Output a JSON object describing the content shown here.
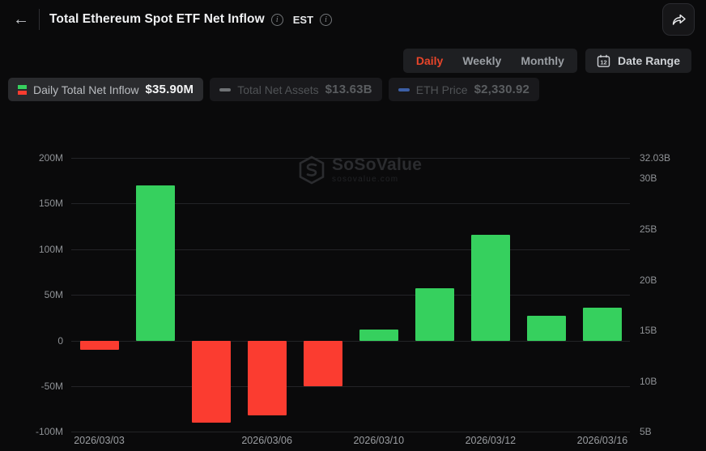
{
  "header": {
    "title": "Total Ethereum Spot ETF Net Inflow",
    "timezone": "EST"
  },
  "controls": {
    "period_tabs": [
      {
        "label": "Daily",
        "active": true
      },
      {
        "label": "Weekly",
        "active": false
      },
      {
        "label": "Monthly",
        "active": false
      }
    ],
    "date_range": {
      "label": "Date Range",
      "calendar_day": "12"
    }
  },
  "legend": [
    {
      "name": "Daily Total Net Inflow",
      "value": "$35.90M",
      "active": true,
      "swatch": "green-red-stack"
    },
    {
      "name": "Total Net Assets",
      "value": "$13.63B",
      "active": false,
      "swatch": "gray-dash"
    },
    {
      "name": "ETH Price",
      "value": "$2,330.92",
      "active": false,
      "swatch": "blue-dash"
    }
  ],
  "watermark": {
    "brand": "SoSoValue",
    "domain": "sosovalue.com"
  },
  "chart_data": {
    "type": "bar",
    "title": "Total Ethereum Spot ETF Net Inflow",
    "unit": "USD (millions), daily net inflow",
    "values": [
      -10,
      170,
      -90,
      -82,
      -50,
      12,
      57,
      116,
      27,
      35.9
    ],
    "colors": {
      "positive": "#36d05e",
      "negative": "#fb3c30"
    },
    "x_ticks": [
      {
        "label": "2026/03/03",
        "bar_index": 0
      },
      {
        "label": "2026/03/06",
        "bar_index": 3
      },
      {
        "label": "2026/03/10",
        "bar_index": 5
      },
      {
        "label": "2026/03/12",
        "bar_index": 7
      },
      {
        "label": "2026/03/16",
        "bar_index": 9
      }
    ],
    "left_axis": {
      "labels": [
        "200M",
        "150M",
        "100M",
        "50M",
        "0",
        "-50M",
        "-100M"
      ],
      "values": [
        200,
        150,
        100,
        50,
        0,
        -50,
        -100
      ],
      "min": -100,
      "max": 200
    },
    "right_axis": {
      "labels": [
        "32.03B",
        "30B",
        "25B",
        "20B",
        "15B",
        "10B",
        "5B"
      ],
      "values": [
        32.03,
        30,
        25,
        20,
        15,
        10,
        5
      ],
      "min": 5,
      "max": 32.03
    },
    "grid": true,
    "legend_position": "top-left"
  }
}
